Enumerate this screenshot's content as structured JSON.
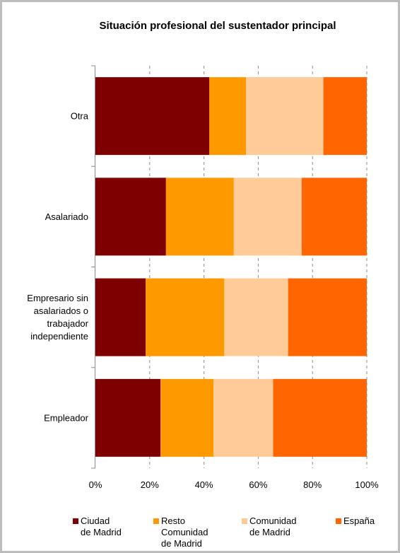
{
  "chart_data": {
    "type": "bar",
    "orientation": "horizontal",
    "stacked": "percent",
    "title": "Situación profesional del sustentador principal",
    "categories": [
      [
        "Otra"
      ],
      [
        "Asalariado"
      ],
      [
        "Empresario sin",
        "asalariados o",
        "trabajador",
        "independiente"
      ],
      [
        "Empleador"
      ]
    ],
    "series": [
      {
        "name": [
          "Ciudad",
          "de Madrid"
        ],
        "color": "#7f0000",
        "values": [
          42,
          26,
          18.5,
          24
        ]
      },
      {
        "name": [
          "Resto",
          "Comunidad",
          "de Madrid"
        ],
        "color": "#ff9900",
        "values": [
          13.5,
          25,
          29,
          19.5
        ]
      },
      {
        "name": [
          "Comunidad",
          "de Madrid"
        ],
        "color": "#ffcc99",
        "values": [
          28.5,
          25,
          23.5,
          22
        ]
      },
      {
        "name": [
          "España"
        ],
        "color": "#ff6600",
        "values": [
          16,
          24,
          29,
          34.5
        ]
      }
    ],
    "xlim": [
      0,
      100
    ],
    "x_ticks": [
      "0%",
      "20%",
      "40%",
      "60%",
      "80%",
      "100%"
    ],
    "grid": "vertical dashed",
    "legend": "bottom"
  }
}
